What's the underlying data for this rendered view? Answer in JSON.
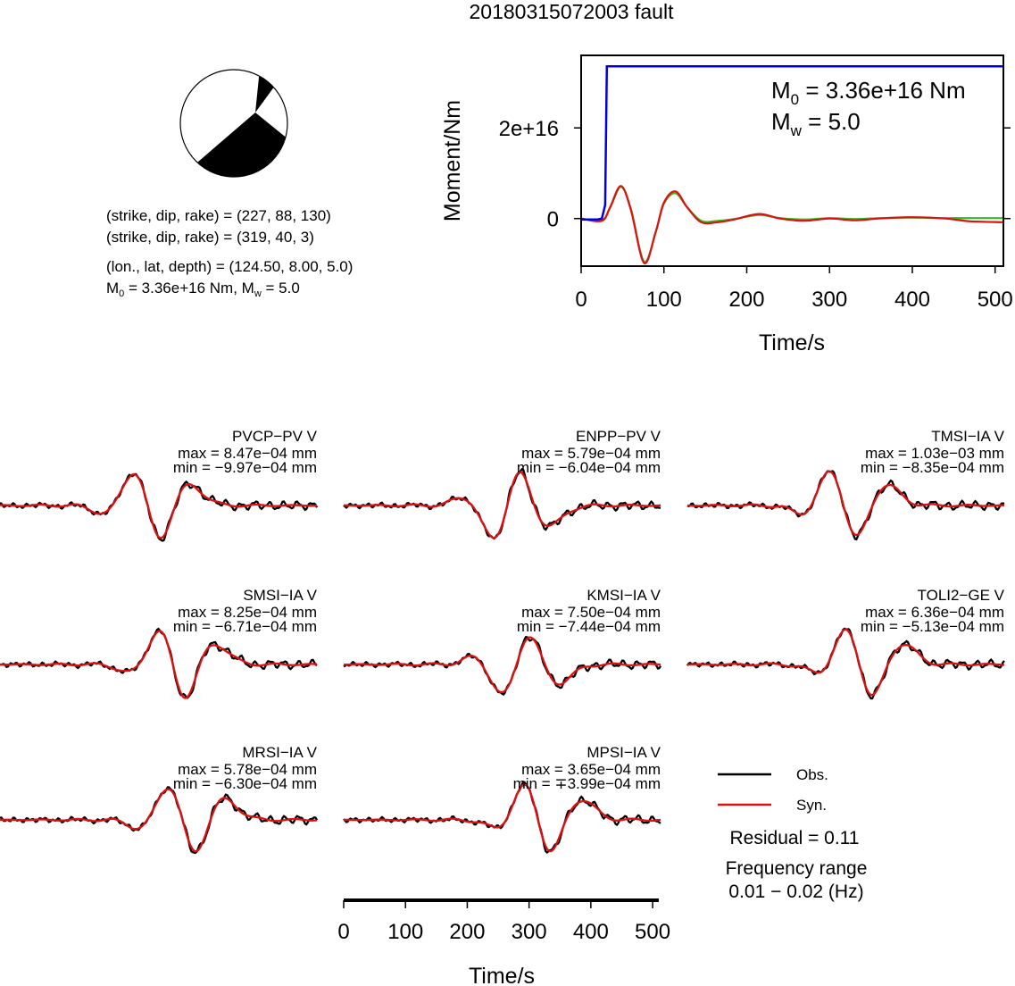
{
  "title": "20180315072003 fault",
  "mechanism": {
    "line1": "(strike, dip, rake) = (227, 88, 130)",
    "line2": "(strike, dip, rake) = (319, 40, 3)",
    "location": "(lon., lat, depth) = (124.50, 8.00, 5.0)",
    "m0_prefix": "M",
    "m0_sub": "0",
    "m0_rest": " = 3.36e+16 Nm, M",
    "mw_sub": "w",
    "mw_rest": " = 5.0"
  },
  "moment_panel": {
    "annot_m0_base": "M",
    "annot_m0_sub": "0",
    "annot_m0_rest": " = 3.36e+16 Nm",
    "annot_mw_base": "M",
    "annot_mw_sub": "w",
    "annot_mw_rest": " = 5.0",
    "colors": {
      "cumulative": "#0000dd",
      "rate_red": "#dd1111",
      "rate_green": "#33bb22"
    }
  },
  "waveform_panel": {
    "legend": {
      "obs": "Obs.",
      "syn": "Syn."
    },
    "residual": "Residual = 0.11",
    "freq_title": "Frequency range",
    "freq_value": "0.01 − 0.02 (Hz)",
    "colors": {
      "obs": "#000000",
      "syn": "#dd1111"
    }
  },
  "chart_data": [
    {
      "type": "line",
      "xlabel": "Time/s",
      "ylabel": "Moment/Nm",
      "xlim": [
        0,
        510
      ],
      "ylim": [
        -1.05e+16,
        3.6e+16
      ],
      "x_ticks": [
        0,
        100,
        200,
        300,
        400,
        500
      ],
      "x_tick_labels": [
        "0",
        "100",
        "200",
        "300",
        "400",
        "500"
      ],
      "y_ticks": [
        0,
        2e+16
      ],
      "y_tick_labels": [
        "0",
        "2e+16"
      ],
      "series": [
        {
          "role": "cumulative",
          "x": [
            0,
            20,
            25,
            29,
            31,
            510
          ],
          "y": [
            -200000000000000.0,
            -200000000000000.0,
            0,
            3000000000000000.0,
            3.36e+16,
            3.36e+16
          ]
        },
        {
          "role": "rate_red",
          "x": [
            0,
            25,
            35,
            48,
            60,
            76,
            90,
            100,
            114,
            128,
            145,
            165,
            185,
            215,
            240,
            270,
            300,
            330,
            360,
            400,
            440,
            470,
            510
          ],
          "y": [
            0,
            -500000000000000.0,
            2500000000000000.0,
            7200000000000000.0,
            2000000000000000.0,
            -9800000000000000.0,
            -3000000000000000.0,
            3500000000000000.0,
            6000000000000000.0,
            2500000000000000.0,
            -800000000000000.0,
            -800000000000000.0,
            -200000000000000.0,
            1000000000000000.0,
            0,
            -500000000000000.0,
            0,
            -400000000000000.0,
            0,
            300000000000000.0,
            0,
            -600000000000000.0,
            -800000000000000.0
          ]
        },
        {
          "role": "rate_green",
          "x": [
            0,
            25,
            35,
            48,
            60,
            76,
            90,
            100,
            114,
            128,
            145,
            165,
            185,
            215,
            240,
            270,
            300,
            330,
            360,
            400,
            440,
            470,
            510
          ],
          "y": [
            0,
            -400000000000000.0,
            2400000000000000.0,
            7000000000000000.0,
            2200000000000000.0,
            -9500000000000000.0,
            -3000000000000000.0,
            3300000000000000.0,
            5600000000000000.0,
            2500000000000000.0,
            -500000000000000.0,
            -500000000000000.0,
            -100000000000000.0,
            800000000000000.0,
            100000000000000.0,
            -200000000000000.0,
            100000000000000.0,
            -100000000000000.0,
            100000000000000.0,
            200000000000000.0,
            100000000000000.0,
            100000000000000.0,
            100000000000000.0
          ]
        }
      ]
    },
    {
      "type": "line",
      "panel": "waveforms",
      "xlabel": "Time/s",
      "xlim": [
        0,
        510
      ],
      "x_ticks": [
        0,
        100,
        200,
        300,
        400,
        500
      ],
      "x_tick_labels": [
        "0",
        "100",
        "200",
        "300",
        "400",
        "500"
      ],
      "stations": [
        {
          "name": "PVCP−PV V",
          "max": "max = 8.47e−04 mm",
          "min": "min = −9.97e−04 mm"
        },
        {
          "name": "ENPP−PV V",
          "max": "max = 5.79e−04 mm",
          "min": "min = −6.04e−04 mm"
        },
        {
          "name": "TMSI−IA V",
          "max": "max = 1.03e−03 mm",
          "min": "min = −8.35e−04 mm"
        },
        {
          "name": "SMSI−IA V",
          "max": "max = 8.25e−04 mm",
          "min": "min = −6.71e−04 mm"
        },
        {
          "name": "KMSI−IA V",
          "max": "max = 7.50e−04 mm",
          "min": "min = −7.44e−04 mm"
        },
        {
          "name": "TOLI2−GE V",
          "max": "max = 6.36e−04 mm",
          "min": "min = −5.13e−04 mm"
        },
        {
          "name": "MRSI−IA V",
          "max": "max = 5.78e−04 mm",
          "min": "min = −6.30e−04 mm"
        },
        {
          "name": "MPSI−IA V",
          "max": "max = 3.65e−04 mm",
          "min": "min = ∓3.99e−04 mm"
        }
      ]
    }
  ]
}
